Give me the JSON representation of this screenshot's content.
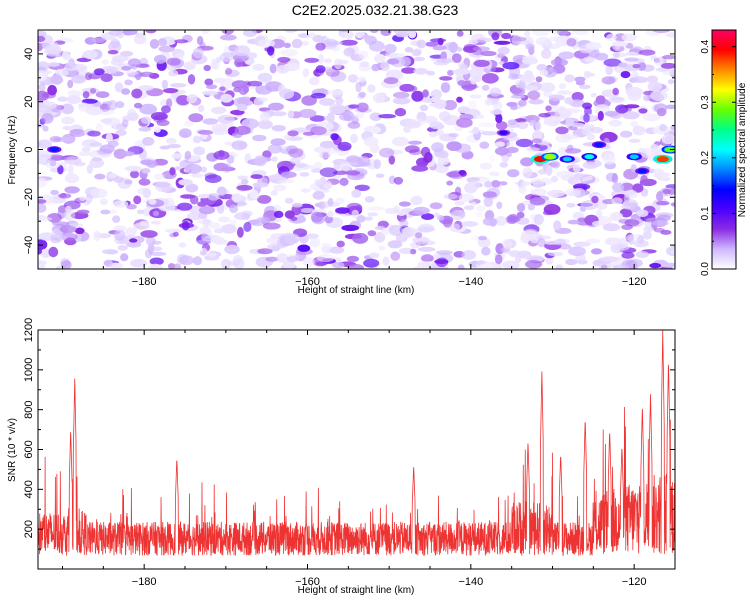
{
  "title": "C2E2.2025.032.21.38.G23",
  "chart_data": [
    {
      "type": "heatmap",
      "xlabel": "Height of straight line (km)",
      "ylabel": "Frequency (Hz)",
      "xlim": [
        -193,
        -115
      ],
      "ylim": [
        -50,
        50
      ],
      "x_ticks": [
        -180,
        -160,
        -140,
        -120
      ],
      "y_ticks": [
        -40,
        -20,
        0,
        20,
        40
      ],
      "colorbar": {
        "label": "Normalized spectral amplitude",
        "range": [
          0.0,
          0.43
        ],
        "ticks": [
          0.0,
          0.1,
          0.2,
          0.3,
          0.4
        ],
        "colors": [
          "#ffffff",
          "#cfb8ff",
          "#8a2be2",
          "#4b00ff",
          "#0000ff",
          "#0088ff",
          "#00ffff",
          "#00ff88",
          "#66ff00",
          "#ffff00",
          "#ff8800",
          "#ff0000",
          "#ff0066"
        ]
      },
      "hotspots": [
        {
          "x": -191.0,
          "y": 0.0,
          "amp": 0.15
        },
        {
          "x": -131.5,
          "y": -4.0,
          "amp": 0.4
        },
        {
          "x": -130.3,
          "y": -3.0,
          "amp": 0.3
        },
        {
          "x": -128.2,
          "y": -4.0,
          "amp": 0.2
        },
        {
          "x": -125.5,
          "y": -3.0,
          "amp": 0.22
        },
        {
          "x": -124.3,
          "y": 2.0,
          "amp": 0.15
        },
        {
          "x": -120.0,
          "y": -3.0,
          "amp": 0.2
        },
        {
          "x": -116.5,
          "y": -4.0,
          "amp": 0.38
        },
        {
          "x": -115.6,
          "y": 0.0,
          "amp": 0.28
        },
        {
          "x": -119.0,
          "y": -9.0,
          "amp": 0.15
        },
        {
          "x": -136.0,
          "y": 7.0,
          "amp": 0.12
        }
      ]
    },
    {
      "type": "line",
      "xlabel": "Height of straight line (km)",
      "ylabel": "SNR (10 * v/v)",
      "xlim": [
        -193,
        -115
      ],
      "ylim": [
        0,
        1200
      ],
      "x_ticks": [
        -180,
        -160,
        -140,
        -120
      ],
      "y_ticks": [
        200,
        400,
        600,
        800,
        1000,
        1200
      ],
      "series": [
        {
          "color": "#ee3333",
          "baseline": 190,
          "peaks": [
            {
              "x": -188.5,
              "y": 960
            },
            {
              "x": -189.0,
              "y": 700
            },
            {
              "x": -131.3,
              "y": 1000
            },
            {
              "x": -133.0,
              "y": 640
            },
            {
              "x": -129.0,
              "y": 580
            },
            {
              "x": -126.0,
              "y": 760
            },
            {
              "x": -123.0,
              "y": 700
            },
            {
              "x": -121.5,
              "y": 620
            },
            {
              "x": -119.0,
              "y": 820
            },
            {
              "x": -118.0,
              "y": 880
            },
            {
              "x": -116.5,
              "y": 1200
            },
            {
              "x": -115.8,
              "y": 1050
            },
            {
              "x": -147.0,
              "y": 520
            },
            {
              "x": -176.0,
              "y": 560
            }
          ]
        }
      ]
    }
  ]
}
